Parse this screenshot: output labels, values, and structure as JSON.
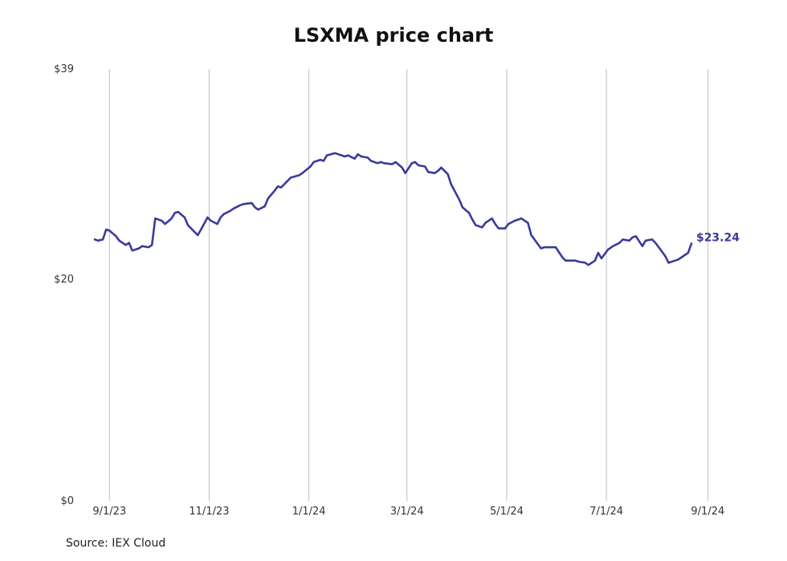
{
  "chart_data": {
    "type": "line",
    "title": "LSXMA price chart",
    "source": "Source: IEX Cloud",
    "xlabel": "",
    "ylabel": "",
    "ylim": [
      0,
      39
    ],
    "y_ticks": [
      {
        "value": 0,
        "label": "$0"
      },
      {
        "value": 20,
        "label": "$20"
      },
      {
        "value": 39,
        "label": "$39"
      }
    ],
    "x_ticks": [
      {
        "date": "2023-09-01",
        "label": "9/1/23"
      },
      {
        "date": "2023-11-01",
        "label": "11/1/23"
      },
      {
        "date": "2024-01-01",
        "label": "1/1/24"
      },
      {
        "date": "2024-03-01",
        "label": "3/1/24"
      },
      {
        "date": "2024-05-01",
        "label": "5/1/24"
      },
      {
        "date": "2024-07-01",
        "label": "7/1/24"
      },
      {
        "date": "2024-09-01",
        "label": "9/1/24"
      }
    ],
    "xlim": [
      "2023-08-24",
      "2024-09-20"
    ],
    "vertical_grid": true,
    "line_color": "#3b3a9c",
    "last_value_label": "$23.24",
    "series": [
      {
        "x": [
          "2023-08-23",
          "2023-08-25",
          "2023-08-28",
          "2023-08-30",
          "2023-09-01",
          "2023-09-05",
          "2023-09-07",
          "2023-09-11",
          "2023-09-13",
          "2023-09-15",
          "2023-09-19",
          "2023-09-21",
          "2023-09-25",
          "2023-09-27",
          "2023-09-29",
          "2023-10-03",
          "2023-10-05",
          "2023-10-09",
          "2023-10-11",
          "2023-10-13",
          "2023-10-17",
          "2023-10-19",
          "2023-10-23",
          "2023-10-25",
          "2023-10-27",
          "2023-10-31",
          "2023-11-02",
          "2023-11-06",
          "2023-11-08",
          "2023-11-10",
          "2023-11-14",
          "2023-11-16",
          "2023-11-20",
          "2023-11-22",
          "2023-11-27",
          "2023-11-29",
          "2023-12-01",
          "2023-12-05",
          "2023-12-07",
          "2023-12-11",
          "2023-12-13",
          "2023-12-15",
          "2023-12-19",
          "2023-12-21",
          "2023-12-26",
          "2023-12-28",
          "2024-01-02",
          "2024-01-04",
          "2024-01-08",
          "2024-01-10",
          "2024-01-12",
          "2024-01-17",
          "2024-01-19",
          "2024-01-23",
          "2024-01-25",
          "2024-01-29",
          "2024-01-31",
          "2024-02-02",
          "2024-02-06",
          "2024-02-08",
          "2024-02-12",
          "2024-02-14",
          "2024-02-16",
          "2024-02-21",
          "2024-02-23",
          "2024-02-27",
          "2024-02-29",
          "2024-03-04",
          "2024-03-06",
          "2024-03-08",
          "2024-03-12",
          "2024-03-14",
          "2024-03-18",
          "2024-03-20",
          "2024-03-22",
          "2024-03-26",
          "2024-03-28",
          "2024-04-02",
          "2024-04-04",
          "2024-04-08",
          "2024-04-10",
          "2024-04-12",
          "2024-04-16",
          "2024-04-18",
          "2024-04-22",
          "2024-04-24",
          "2024-04-26",
          "2024-04-30",
          "2024-05-02",
          "2024-05-06",
          "2024-05-08",
          "2024-05-10",
          "2024-05-14",
          "2024-05-16",
          "2024-05-20",
          "2024-05-22",
          "2024-05-24",
          "2024-05-29",
          "2024-05-31",
          "2024-06-04",
          "2024-06-06",
          "2024-06-10",
          "2024-06-12",
          "2024-06-14",
          "2024-06-18",
          "2024-06-20",
          "2024-06-24",
          "2024-06-26",
          "2024-06-28",
          "2024-07-02",
          "2024-07-05",
          "2024-07-09",
          "2024-07-11",
          "2024-07-15",
          "2024-07-17",
          "2024-07-19",
          "2024-07-23",
          "2024-07-25",
          "2024-07-29",
          "2024-07-31",
          "2024-08-02",
          "2024-08-06",
          "2024-08-08",
          "2024-08-12",
          "2024-08-14",
          "2024-08-16",
          "2024-08-20",
          "2024-08-22"
        ],
        "values": [
          23.6,
          23.5,
          23.6,
          24.5,
          24.4,
          23.9,
          23.5,
          23.1,
          23.3,
          22.6,
          22.8,
          23.0,
          22.9,
          23.1,
          25.5,
          25.3,
          25.0,
          25.5,
          26.0,
          26.1,
          25.6,
          24.9,
          24.3,
          24.0,
          24.5,
          25.6,
          25.3,
          25.0,
          25.6,
          25.9,
          26.2,
          26.4,
          26.7,
          26.8,
          26.9,
          26.5,
          26.3,
          26.6,
          27.3,
          28.0,
          28.4,
          28.3,
          28.9,
          29.2,
          29.4,
          29.6,
          30.2,
          30.6,
          30.8,
          30.7,
          31.2,
          31.4,
          31.3,
          31.1,
          31.2,
          30.9,
          31.3,
          31.1,
          31.0,
          30.7,
          30.5,
          30.6,
          30.5,
          30.4,
          30.6,
          30.1,
          29.6,
          30.5,
          30.6,
          30.3,
          30.2,
          29.7,
          29.6,
          29.8,
          30.1,
          29.5,
          28.6,
          27.2,
          26.5,
          26.0,
          25.4,
          24.9,
          24.7,
          25.1,
          25.5,
          25.0,
          24.6,
          24.6,
          25.0,
          25.3,
          25.4,
          25.5,
          25.1,
          24.0,
          23.2,
          22.8,
          22.9,
          22.9,
          22.9,
          22.0,
          21.7,
          21.7,
          21.7,
          21.6,
          21.5,
          21.3,
          21.7,
          22.4,
          21.9,
          22.7,
          23.0,
          23.3,
          23.6,
          23.5,
          23.8,
          23.9,
          23.0,
          23.5,
          23.6,
          23.3,
          22.9,
          22.1,
          21.5,
          21.7,
          21.8,
          22.0,
          22.4,
          23.24
        ]
      }
    ]
  }
}
